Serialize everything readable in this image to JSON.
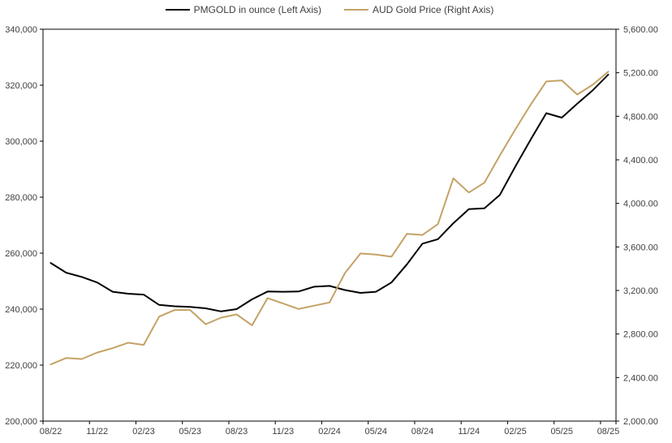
{
  "chart_data": {
    "type": "line",
    "title": "",
    "x": [
      "08/22",
      "09/22",
      "10/22",
      "11/22",
      "12/22",
      "01/23",
      "02/23",
      "03/23",
      "04/23",
      "05/23",
      "06/23",
      "07/23",
      "08/23",
      "09/23",
      "10/23",
      "11/23",
      "12/23",
      "01/24",
      "02/24",
      "03/24",
      "04/24",
      "05/24",
      "06/24",
      "07/24",
      "08/24",
      "09/24",
      "10/24",
      "11/24",
      "12/24",
      "01/25",
      "02/25",
      "03/25",
      "04/25",
      "05/25",
      "06/25",
      "07/25",
      "08/25"
    ],
    "x_tick_labels": [
      "08/22",
      "11/22",
      "02/23",
      "05/23",
      "08/23",
      "11/23",
      "02/24",
      "05/24",
      "08/24",
      "11/24",
      "02/25",
      "05/25",
      "08/25"
    ],
    "series": [
      {
        "name": "PMGOLD in ounce (Left Axis)",
        "axis": "left",
        "color": "#000000",
        "values": [
          256500,
          253000,
          251500,
          249500,
          246200,
          245500,
          245200,
          241500,
          241000,
          240800,
          240300,
          239200,
          240000,
          243500,
          246300,
          246200,
          246300,
          248000,
          248300,
          246800,
          245800,
          246200,
          249500,
          256000,
          263400,
          265000,
          270700,
          275700,
          276000,
          280800,
          291000,
          300700,
          310000,
          308400,
          313400,
          318200,
          323800
        ]
      },
      {
        "name": "AUD Gold Price (Right Axis)",
        "axis": "right",
        "color": "#C4A265",
        "values": [
          2520,
          2580,
          2570,
          2630,
          2670,
          2720,
          2700,
          2960,
          3020,
          3020,
          2890,
          2950,
          2980,
          2880,
          3130,
          3080,
          3030,
          3060,
          3090,
          3360,
          3540,
          3530,
          3510,
          3720,
          3710,
          3810,
          4230,
          4100,
          4190,
          4440,
          4680,
          4910,
          5120,
          5130,
          5000,
          5090,
          5210
        ]
      }
    ],
    "left_axis": {
      "min": 200000,
      "max": 340000,
      "step": 20000,
      "tick_labels": [
        "340,000",
        "320,000",
        "300,000",
        "280,000",
        "260,000",
        "240,000",
        "220,000",
        "200,000"
      ]
    },
    "right_axis": {
      "min": 2000,
      "max": 5600,
      "step": 400,
      "tick_labels": [
        "5,600.00",
        "5,200.00",
        "4,800.00",
        "4,400.00",
        "4,000.00",
        "3,600.00",
        "3,200.00",
        "2,800.00",
        "2,400.00",
        "2,000.00"
      ]
    },
    "legend_position": "top",
    "grid": false,
    "axis_color": "#000000",
    "label_color": "#404040"
  }
}
